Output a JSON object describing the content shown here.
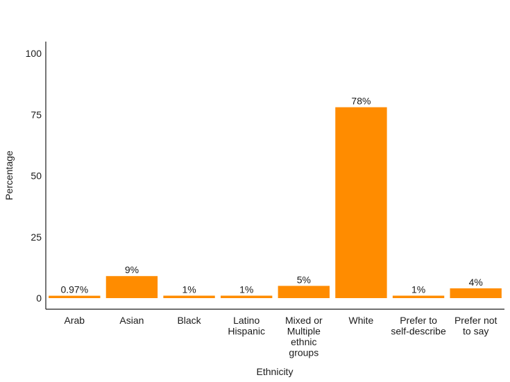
{
  "chart_data": {
    "type": "bar",
    "title": "",
    "xlabel": "Ethnicity",
    "ylabel": "Percentage",
    "ylim": [
      0,
      100
    ],
    "yticks": [
      0,
      25,
      50,
      75,
      100
    ],
    "grid": false,
    "bar_color": "#FF8C00",
    "categories": [
      [
        "Arab"
      ],
      [
        "Asian"
      ],
      [
        "Black"
      ],
      [
        "Latino",
        "Hispanic"
      ],
      [
        "Mixed or",
        "Multiple",
        "ethnic",
        "groups"
      ],
      [
        "White"
      ],
      [
        "Prefer to",
        "self-describe"
      ],
      [
        "Prefer not",
        "to say"
      ]
    ],
    "values": [
      0.97,
      9,
      1,
      1,
      5,
      78,
      1,
      4
    ],
    "data_labels": [
      "0.97%",
      "9%",
      "1%",
      "1%",
      "5%",
      "78%",
      "1%",
      "4%"
    ]
  }
}
